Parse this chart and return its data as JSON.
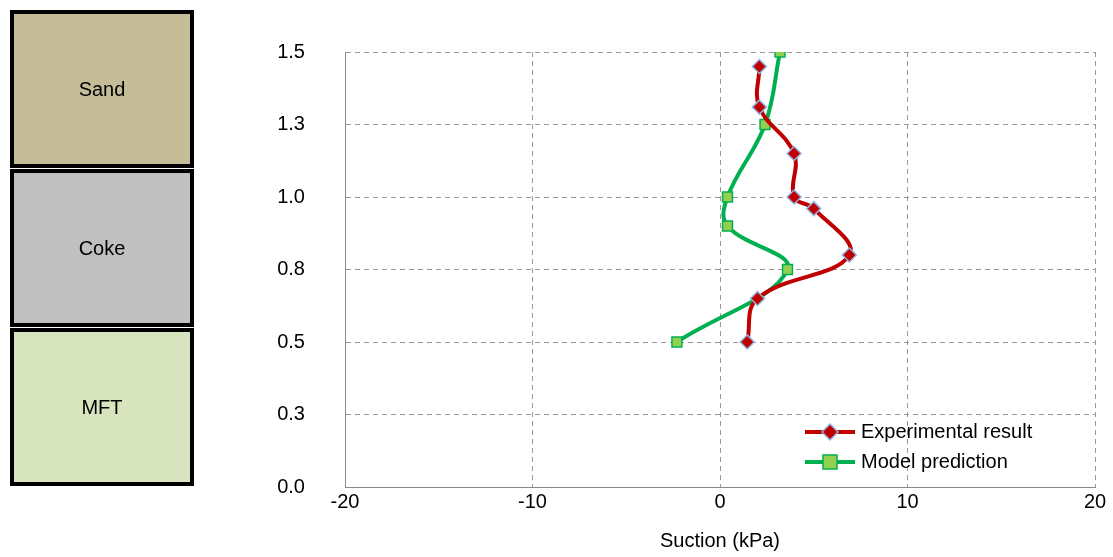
{
  "chart_data": {
    "type": "line",
    "xlabel": "Suction (kPa)",
    "xlim": [
      -20,
      20
    ],
    "xticks": [
      -20,
      -10,
      0,
      10,
      20
    ],
    "ylim": [
      0,
      1.5
    ],
    "yticks": [
      {
        "value": 0,
        "label": "0.0"
      },
      {
        "value": 0.25,
        "label": "0.3"
      },
      {
        "value": 0.5,
        "label": "0.5"
      },
      {
        "value": 0.75,
        "label": "0.8"
      },
      {
        "value": 1.0,
        "label": "1.0"
      },
      {
        "value": 1.25,
        "label": "1.3"
      },
      {
        "value": 1.5,
        "label": "1.5"
      }
    ],
    "grid": true,
    "legend": "bottom right",
    "line_style": "solid",
    "series": [
      {
        "name": "Experimental result",
        "color": "#c00000",
        "marker": "diamond",
        "x": [
          2.1,
          2.1,
          3.95,
          3.95,
          5.0,
          6.9,
          2.0,
          1.45
        ],
        "values": [
          1.45,
          1.31,
          1.15,
          1.0,
          0.96,
          0.8,
          0.65,
          0.5
        ]
      },
      {
        "name": "Model prediction",
        "color": "#00b050",
        "marker": "square",
        "x": [
          3.2,
          2.4,
          0.4,
          0.4,
          3.6,
          -2.3
        ],
        "values": [
          1.5,
          1.25,
          1.0,
          0.9,
          0.75,
          0.5
        ]
      }
    ],
    "annotations": [
      "Sand",
      "Coke",
      "MFT"
    ]
  }
}
